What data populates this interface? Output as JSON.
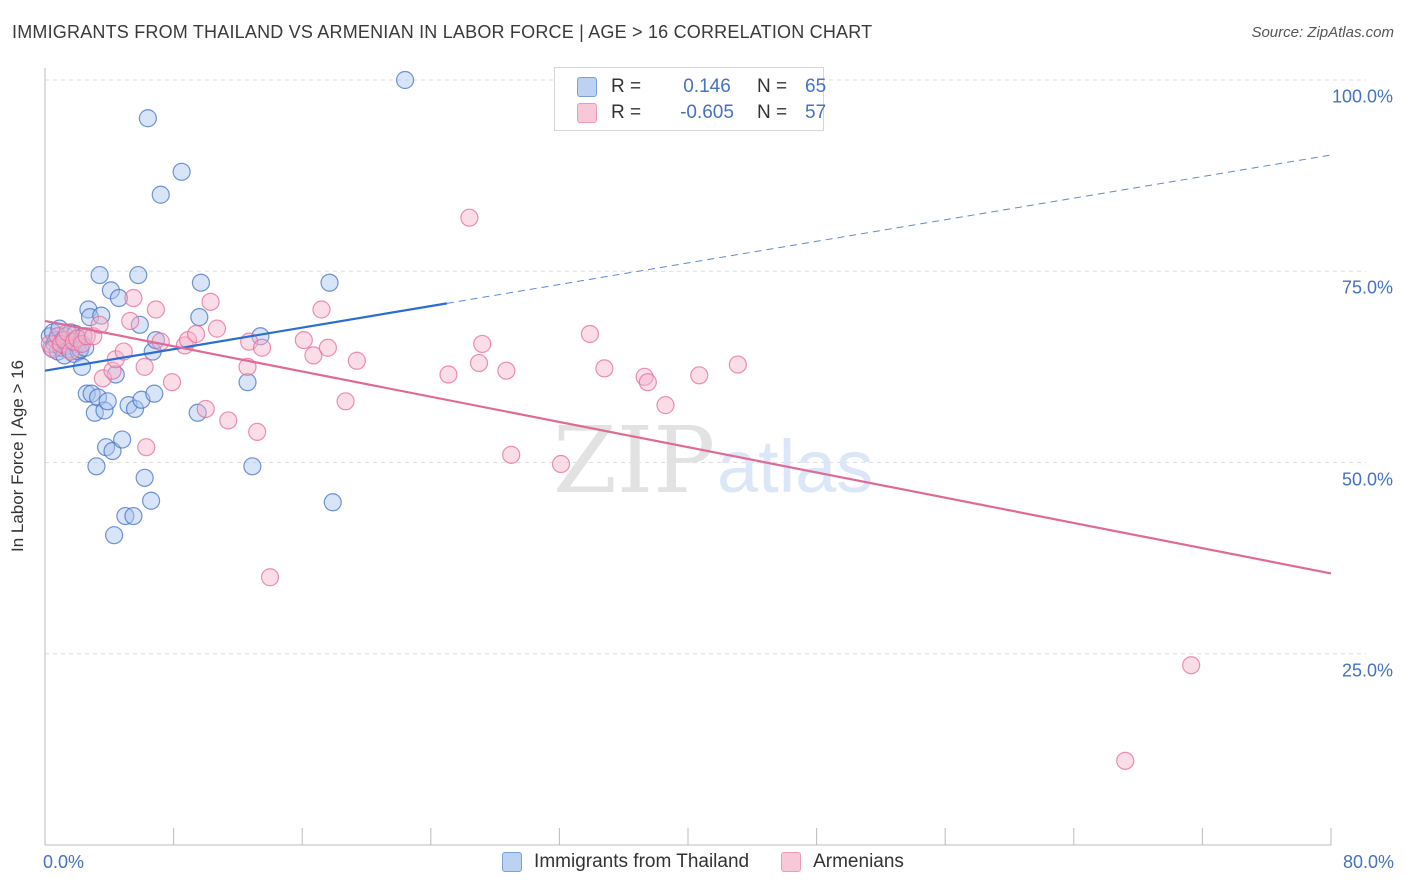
{
  "header": {
    "title": "IMMIGRANTS FROM THAILAND VS ARMENIAN IN LABOR FORCE | AGE > 16 CORRELATION CHART",
    "source": "Source: ZipAtlas.com"
  },
  "watermark": {
    "part1": "ZIP",
    "part2": "atlas"
  },
  "legend": {
    "rows": [
      {
        "r_label": "R =",
        "r_value": "0.146",
        "n_label": "N =",
        "n_value": "65",
        "color": "#4472c4"
      },
      {
        "r_label": "R =",
        "r_value": "-0.605",
        "n_label": "N =",
        "n_value": "57",
        "color": "#e56b9b"
      }
    ]
  },
  "chart_data": {
    "type": "scatter",
    "title": "IMMIGRANTS FROM THAILAND VS ARMENIAN IN LABOR FORCE | AGE > 16 CORRELATION CHART",
    "ylabel": "In Labor Force | Age > 16",
    "xlabel": "",
    "xlim": [
      0,
      80
    ],
    "ylim": [
      0,
      100
    ],
    "y_ticks": [
      {
        "value": 100,
        "label": "100.0%"
      },
      {
        "value": 75,
        "label": "75.0%"
      },
      {
        "value": 50,
        "label": "50.0%"
      },
      {
        "value": 25,
        "label": "25.0%"
      }
    ],
    "x_ticks": [
      {
        "value": 0,
        "label": "0.0%"
      },
      {
        "value": 80,
        "label": "80.0%"
      }
    ],
    "grid": true,
    "legend_position": "top-center",
    "series": [
      {
        "name": "Immigrants from Thailand",
        "color": "#4472c4",
        "fill": "#a8c4ee",
        "trend": {
          "x_solid": [
            0,
            25
          ],
          "y_solid": [
            62,
            70.8
          ],
          "x_dashed": [
            25,
            80
          ],
          "y_dashed": [
            70.8,
            90.2
          ]
        },
        "points": [
          [
            0.3,
            66.5
          ],
          [
            0.4,
            65
          ],
          [
            0.5,
            67
          ],
          [
            0.6,
            65.5
          ],
          [
            0.7,
            66
          ],
          [
            0.8,
            64.5
          ],
          [
            0.9,
            67.5
          ],
          [
            1.0,
            65
          ],
          [
            1.1,
            66
          ],
          [
            1.2,
            64
          ],
          [
            1.3,
            66.5
          ],
          [
            1.4,
            65.2
          ],
          [
            1.5,
            64.8
          ],
          [
            1.6,
            67
          ],
          [
            1.7,
            65.8
          ],
          [
            1.8,
            64.2
          ],
          [
            1.9,
            66.8
          ],
          [
            2.0,
            65.5
          ],
          [
            2.1,
            64.5
          ],
          [
            2.2,
            64.8
          ],
          [
            2.3,
            62.5
          ],
          [
            2.4,
            66.5
          ],
          [
            2.5,
            65
          ],
          [
            2.6,
            59
          ],
          [
            2.7,
            70
          ],
          [
            2.8,
            69
          ],
          [
            2.9,
            59
          ],
          [
            3.1,
            56.5
          ],
          [
            3.2,
            49.5
          ],
          [
            3.3,
            58.5
          ],
          [
            3.4,
            74.5
          ],
          [
            3.5,
            69.2
          ],
          [
            3.7,
            56.8
          ],
          [
            3.8,
            52
          ],
          [
            3.9,
            58
          ],
          [
            4.1,
            72.5
          ],
          [
            4.2,
            51.5
          ],
          [
            4.3,
            40.5
          ],
          [
            4.4,
            61.5
          ],
          [
            4.6,
            71.5
          ],
          [
            4.8,
            53
          ],
          [
            5.0,
            43
          ],
          [
            5.2,
            57.5
          ],
          [
            5.5,
            43
          ],
          [
            5.6,
            57
          ],
          [
            5.8,
            74.5
          ],
          [
            5.9,
            68
          ],
          [
            6.0,
            58.2
          ],
          [
            6.2,
            48
          ],
          [
            6.4,
            95
          ],
          [
            6.6,
            45
          ],
          [
            6.7,
            64.5
          ],
          [
            6.8,
            59
          ],
          [
            6.9,
            66
          ],
          [
            7.2,
            85
          ],
          [
            8.5,
            88
          ],
          [
            9.5,
            56.5
          ],
          [
            9.6,
            69
          ],
          [
            9.7,
            73.5
          ],
          [
            12.6,
            60.5
          ],
          [
            12.9,
            49.5
          ],
          [
            13.4,
            66.5
          ],
          [
            17.7,
            73.5
          ],
          [
            17.9,
            44.8
          ],
          [
            22.4,
            100
          ]
        ]
      },
      {
        "name": "Armenians",
        "color": "#e56b9b",
        "fill": "#f6b4ca",
        "trend": {
          "x_solid": [
            0,
            80
          ],
          "y_solid": [
            68.5,
            35.5
          ]
        },
        "points": [
          [
            0.3,
            65.5
          ],
          [
            0.5,
            64.8
          ],
          [
            0.8,
            66.5
          ],
          [
            1.0,
            65.5
          ],
          [
            1.2,
            66
          ],
          [
            1.4,
            67
          ],
          [
            1.6,
            64.5
          ],
          [
            1.8,
            65.8
          ],
          [
            2.0,
            66.2
          ],
          [
            2.3,
            65.5
          ],
          [
            2.6,
            66.5
          ],
          [
            3.0,
            66.5
          ],
          [
            3.4,
            68
          ],
          [
            3.6,
            61
          ],
          [
            4.2,
            62
          ],
          [
            4.4,
            63.5
          ],
          [
            4.9,
            64.5
          ],
          [
            5.3,
            68.5
          ],
          [
            5.5,
            71.5
          ],
          [
            6.2,
            62.5
          ],
          [
            6.3,
            52
          ],
          [
            6.9,
            70
          ],
          [
            7.2,
            65.8
          ],
          [
            7.9,
            60.5
          ],
          [
            8.7,
            65.3
          ],
          [
            8.9,
            66
          ],
          [
            9.4,
            66.8
          ],
          [
            10.0,
            57
          ],
          [
            10.3,
            71
          ],
          [
            10.7,
            67.5
          ],
          [
            11.4,
            55.5
          ],
          [
            12.6,
            62.5
          ],
          [
            12.7,
            65.8
          ],
          [
            13.2,
            54
          ],
          [
            13.5,
            65
          ],
          [
            14.0,
            35
          ],
          [
            16.1,
            66
          ],
          [
            16.7,
            64
          ],
          [
            17.2,
            70
          ],
          [
            17.6,
            65
          ],
          [
            18.7,
            58
          ],
          [
            19.4,
            63.3
          ],
          [
            25.1,
            61.5
          ],
          [
            26.4,
            82
          ],
          [
            27.0,
            63
          ],
          [
            27.2,
            65.5
          ],
          [
            28.7,
            62
          ],
          [
            29.0,
            51
          ],
          [
            32.1,
            49.8
          ],
          [
            33.9,
            66.8
          ],
          [
            34.8,
            62.3
          ],
          [
            37.3,
            61.2
          ],
          [
            37.5,
            60.5
          ],
          [
            38.6,
            57.5
          ],
          [
            40.7,
            61.4
          ],
          [
            43.1,
            62.8
          ],
          [
            71.3,
            23.5
          ],
          [
            67.2,
            11
          ]
        ]
      }
    ]
  }
}
